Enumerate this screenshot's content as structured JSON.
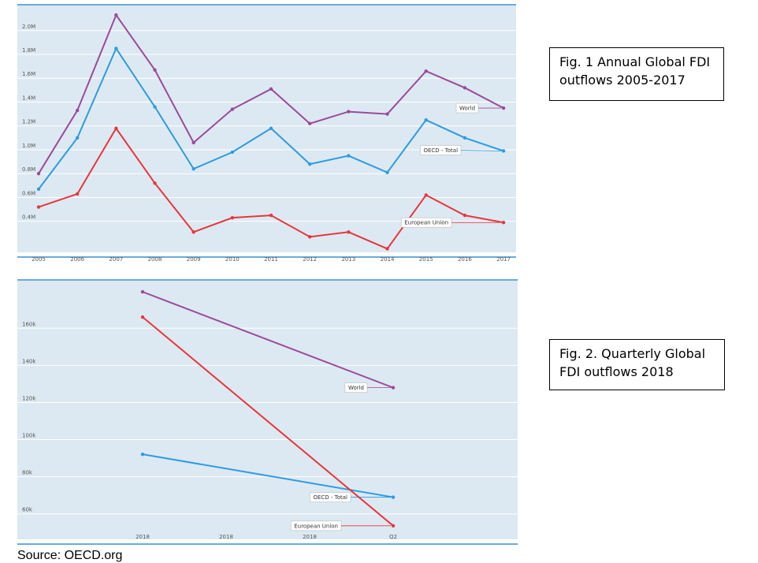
{
  "chart_data": [
    {
      "type": "line",
      "categories": [
        "2005",
        "2006",
        "2007",
        "2008",
        "2009",
        "2010",
        "2011",
        "2012",
        "2013",
        "2014",
        "2015",
        "2016",
        "2017"
      ],
      "series": [
        {
          "name": "World",
          "color": "#9b4a9b",
          "values": [
            0.8,
            1.33,
            2.13,
            1.67,
            1.06,
            1.34,
            1.51,
            1.22,
            1.32,
            1.3,
            1.66,
            1.52,
            1.35
          ]
        },
        {
          "name": "OECD - Total",
          "color": "#2e9be0",
          "values": [
            0.67,
            1.1,
            1.85,
            1.36,
            0.84,
            0.98,
            1.18,
            0.88,
            0.95,
            0.81,
            1.25,
            1.1,
            0.99
          ]
        },
        {
          "name": "European Union",
          "color": "#e8363b",
          "values": [
            0.52,
            0.63,
            1.18,
            0.72,
            0.31,
            0.43,
            0.45,
            0.27,
            0.31,
            0.17,
            0.62,
            0.45,
            0.39
          ]
        }
      ],
      "ylim": [
        0.14,
        2.21
      ],
      "yticks": [
        {
          "value": 0.4,
          "label": "0.4M"
        },
        {
          "value": 0.6,
          "label": "0.6M"
        },
        {
          "value": 0.8,
          "label": "0.8M"
        },
        {
          "value": 1.0,
          "label": "1.0M"
        },
        {
          "value": 1.2,
          "label": "1.2M"
        },
        {
          "value": 1.4,
          "label": "1.4M"
        },
        {
          "value": 1.6,
          "label": "1.6M"
        },
        {
          "value": 1.8,
          "label": "1.8M"
        },
        {
          "value": 2.0,
          "label": "2.0M"
        }
      ],
      "grid": true
    },
    {
      "type": "line",
      "categories": [
        "2018",
        "2018",
        "2018",
        "Q2"
      ],
      "series": [
        {
          "name": "World",
          "color": "#9b4a9b",
          "values": [
            179.6,
            null,
            null,
            128
          ]
        },
        {
          "name": "OECD - Total",
          "color": "#2e9be0",
          "values": [
            92.1,
            null,
            null,
            69
          ]
        },
        {
          "name": "European Union",
          "color": "#e8363b",
          "values": [
            166,
            null,
            null,
            53.6
          ]
        }
      ],
      "ylim": [
        46.3,
        185.6
      ],
      "yticks": [
        {
          "value": 60,
          "label": "60k"
        },
        {
          "value": 80,
          "label": "80k"
        },
        {
          "value": 100,
          "label": "100k"
        },
        {
          "value": 120,
          "label": "120k"
        },
        {
          "value": 140,
          "label": "140k"
        },
        {
          "value": 160,
          "label": "160k"
        }
      ],
      "grid": true
    }
  ],
  "captions": [
    "Fig. 1 Annual Global FDI outflows 2005-2017",
    "Fig. 2. Quarterly Global FDI outflows 2018"
  ],
  "source": "Source: OECD.org"
}
